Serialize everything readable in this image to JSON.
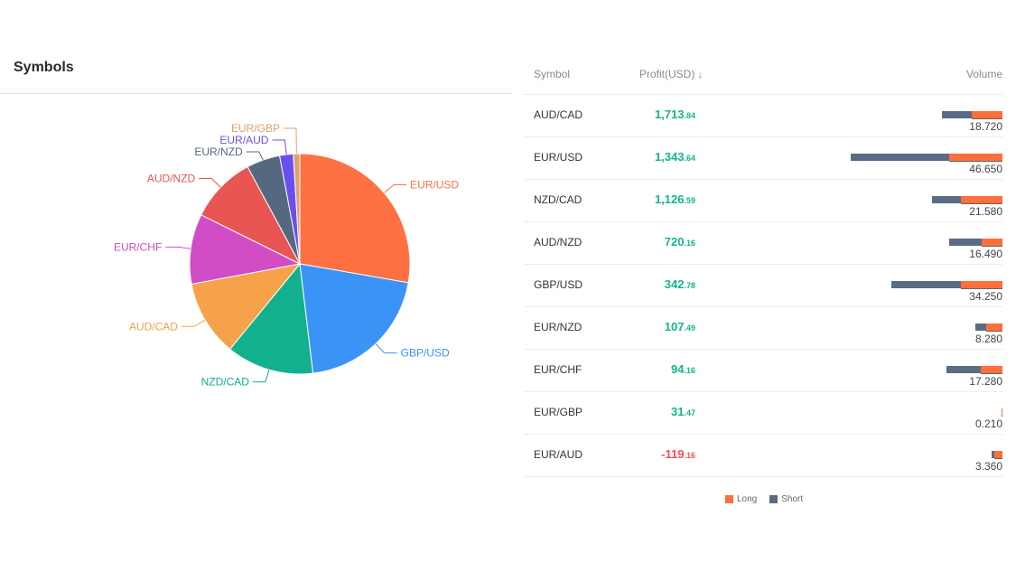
{
  "panel": {
    "title": "Symbols"
  },
  "table": {
    "headers": {
      "symbol": "Symbol",
      "profit": "Profit(USD)",
      "sort_arrow": "↓",
      "volume": "Volume"
    },
    "rows": [
      {
        "symbol": "AUD/CAD",
        "profit_int": "1,713",
        "profit_dec": ".84",
        "volume": "18.720",
        "short_fraction": 0.49,
        "negative": false
      },
      {
        "symbol": "EUR/USD",
        "profit_int": "1,343",
        "profit_dec": ".64",
        "volume": "46.650",
        "short_fraction": 0.65,
        "negative": false
      },
      {
        "symbol": "NZD/CAD",
        "profit_int": "1,126",
        "profit_dec": ".59",
        "volume": "21.580",
        "short_fraction": 0.41,
        "negative": false
      },
      {
        "symbol": "AUD/NZD",
        "profit_int": "720",
        "profit_dec": ".16",
        "volume": "16.490",
        "short_fraction": 0.62,
        "negative": false
      },
      {
        "symbol": "GBP/USD",
        "profit_int": "342",
        "profit_dec": ".78",
        "volume": "34.250",
        "short_fraction": 0.63,
        "negative": false
      },
      {
        "symbol": "EUR/NZD",
        "profit_int": "107",
        "profit_dec": ".49",
        "volume": "8.280",
        "short_fraction": 0.38,
        "negative": false
      },
      {
        "symbol": "EUR/CHF",
        "profit_int": "94",
        "profit_dec": ".16",
        "volume": "17.280",
        "short_fraction": 0.62,
        "negative": false
      },
      {
        "symbol": "EUR/GBP",
        "profit_int": "31",
        "profit_dec": ".47",
        "volume": "0.210",
        "short_fraction": 0.0,
        "negative": false
      },
      {
        "symbol": "EUR/AUD",
        "profit_int": "-119",
        "profit_dec": ".16",
        "volume": "3.360",
        "short_fraction": 0.25,
        "negative": true
      }
    ]
  },
  "legend": {
    "long_label": "Long",
    "short_label": "Short"
  },
  "colors": {
    "long": "#ff6f3c",
    "short": "#5a6b83",
    "positive": "#13b58a",
    "negative": "#f24d56"
  },
  "chart_data": [
    {
      "type": "pie",
      "title": "Symbols",
      "categories": [
        "EUR/USD",
        "GBP/USD",
        "NZD/CAD",
        "AUD/CAD",
        "EUR/CHF",
        "AUD/NZD",
        "EUR/NZD",
        "EUR/AUD",
        "EUR/GBP"
      ],
      "values": [
        46.65,
        34.25,
        21.58,
        18.72,
        17.28,
        16.49,
        8.28,
        3.36,
        0.21
      ],
      "colors": [
        "#ff7043",
        "#3b93f5",
        "#12b08e",
        "#f5a24a",
        "#d24cc6",
        "#e85552",
        "#566880",
        "#6a4ef0",
        "#e0a070"
      ]
    },
    {
      "type": "bar",
      "title": "Volume",
      "categories": [
        "AUD/CAD",
        "EUR/USD",
        "NZD/CAD",
        "AUD/NZD",
        "GBP/USD",
        "EUR/NZD",
        "EUR/CHF",
        "EUR/GBP",
        "EUR/AUD"
      ],
      "values": [
        18.72,
        46.65,
        21.58,
        16.49,
        34.25,
        8.28,
        17.28,
        0.21,
        3.36
      ],
      "series": [
        {
          "name": "Long"
        },
        {
          "name": "Short"
        }
      ]
    }
  ]
}
